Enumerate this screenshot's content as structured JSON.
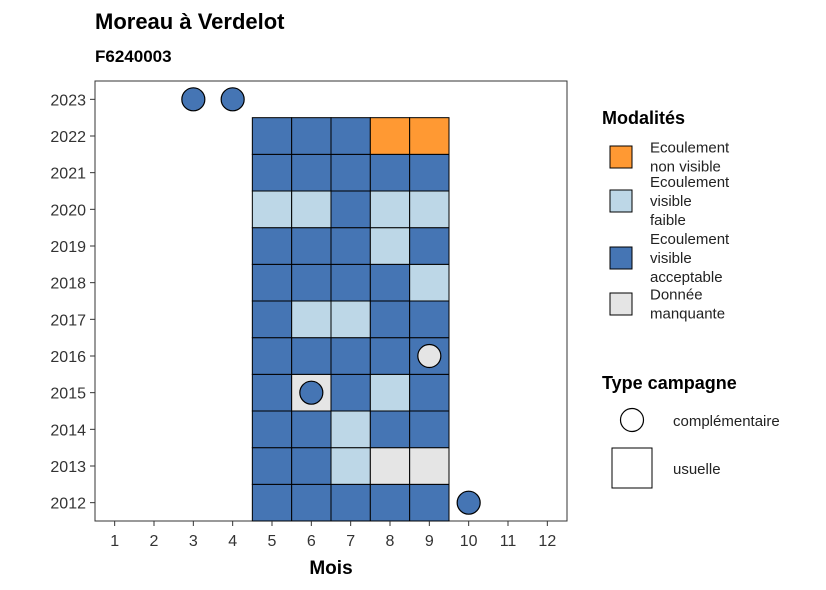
{
  "chart_data": {
    "type": "heatmap",
    "title": "Moreau à Verdelot",
    "subtitle": "F6240003",
    "xlabel": "Mois",
    "ylabel": "",
    "x_ticks": [
      "1",
      "2",
      "3",
      "4",
      "5",
      "6",
      "7",
      "8",
      "9",
      "10",
      "11",
      "12"
    ],
    "y_ticks": [
      "2012",
      "2013",
      "2014",
      "2015",
      "2016",
      "2017",
      "2018",
      "2019",
      "2020",
      "2021",
      "2022",
      "2023"
    ],
    "xlim": [
      0.5,
      12.5
    ],
    "ylim": [
      2011.5,
      2023.5
    ],
    "grid": false,
    "legend_position": "right",
    "colors": {
      "non_visible": "#FF9933",
      "faible": "#BDD7E7",
      "acceptable": "#4575B4",
      "manquante": "#E5E5E5"
    },
    "modalites_legend": {
      "title": "Modalités",
      "items": [
        {
          "key": "non_visible",
          "lines": [
            "Ecoulement",
            "non visible"
          ]
        },
        {
          "key": "faible",
          "lines": [
            "Ecoulement",
            "visible",
            "faible"
          ]
        },
        {
          "key": "acceptable",
          "lines": [
            "Ecoulement",
            "visible",
            "acceptable"
          ]
        },
        {
          "key": "manquante",
          "lines": [
            "Donnée",
            "manquante"
          ]
        }
      ]
    },
    "campagne_legend": {
      "title": "Type campagne",
      "items": [
        {
          "shape": "circle",
          "label": "complémentaire"
        },
        {
          "shape": "square",
          "label": "usuelle"
        }
      ]
    },
    "usuelle": [
      {
        "year": 2012,
        "months": [
          "acceptable",
          "acceptable",
          "acceptable",
          "acceptable",
          "acceptable"
        ]
      },
      {
        "year": 2013,
        "months": [
          "acceptable",
          "acceptable",
          "faible",
          "manquante",
          "manquante"
        ]
      },
      {
        "year": 2014,
        "months": [
          "acceptable",
          "acceptable",
          "faible",
          "acceptable",
          "acceptable"
        ]
      },
      {
        "year": 2015,
        "months": [
          "acceptable",
          "manquante",
          "acceptable",
          "faible",
          "acceptable"
        ]
      },
      {
        "year": 2016,
        "months": [
          "acceptable",
          "acceptable",
          "acceptable",
          "acceptable",
          "acceptable"
        ]
      },
      {
        "year": 2017,
        "months": [
          "acceptable",
          "faible",
          "faible",
          "acceptable",
          "acceptable"
        ]
      },
      {
        "year": 2018,
        "months": [
          "acceptable",
          "acceptable",
          "acceptable",
          "acceptable",
          "faible"
        ]
      },
      {
        "year": 2019,
        "months": [
          "acceptable",
          "acceptable",
          "acceptable",
          "faible",
          "acceptable"
        ]
      },
      {
        "year": 2020,
        "months": [
          "faible",
          "faible",
          "acceptable",
          "faible",
          "faible"
        ]
      },
      {
        "year": 2021,
        "months": [
          "acceptable",
          "acceptable",
          "acceptable",
          "acceptable",
          "acceptable"
        ]
      },
      {
        "year": 2022,
        "months": [
          "acceptable",
          "acceptable",
          "acceptable",
          "non_visible",
          "non_visible"
        ]
      }
    ],
    "usuelle_first_month": 5,
    "complementaire": [
      {
        "year": 2023,
        "month": 3,
        "modalite": "acceptable"
      },
      {
        "year": 2023,
        "month": 4,
        "modalite": "acceptable"
      },
      {
        "year": 2016,
        "month": 9,
        "modalite": "manquante"
      },
      {
        "year": 2015,
        "month": 6,
        "modalite": "acceptable"
      },
      {
        "year": 2012,
        "month": 10,
        "modalite": "acceptable"
      }
    ]
  }
}
